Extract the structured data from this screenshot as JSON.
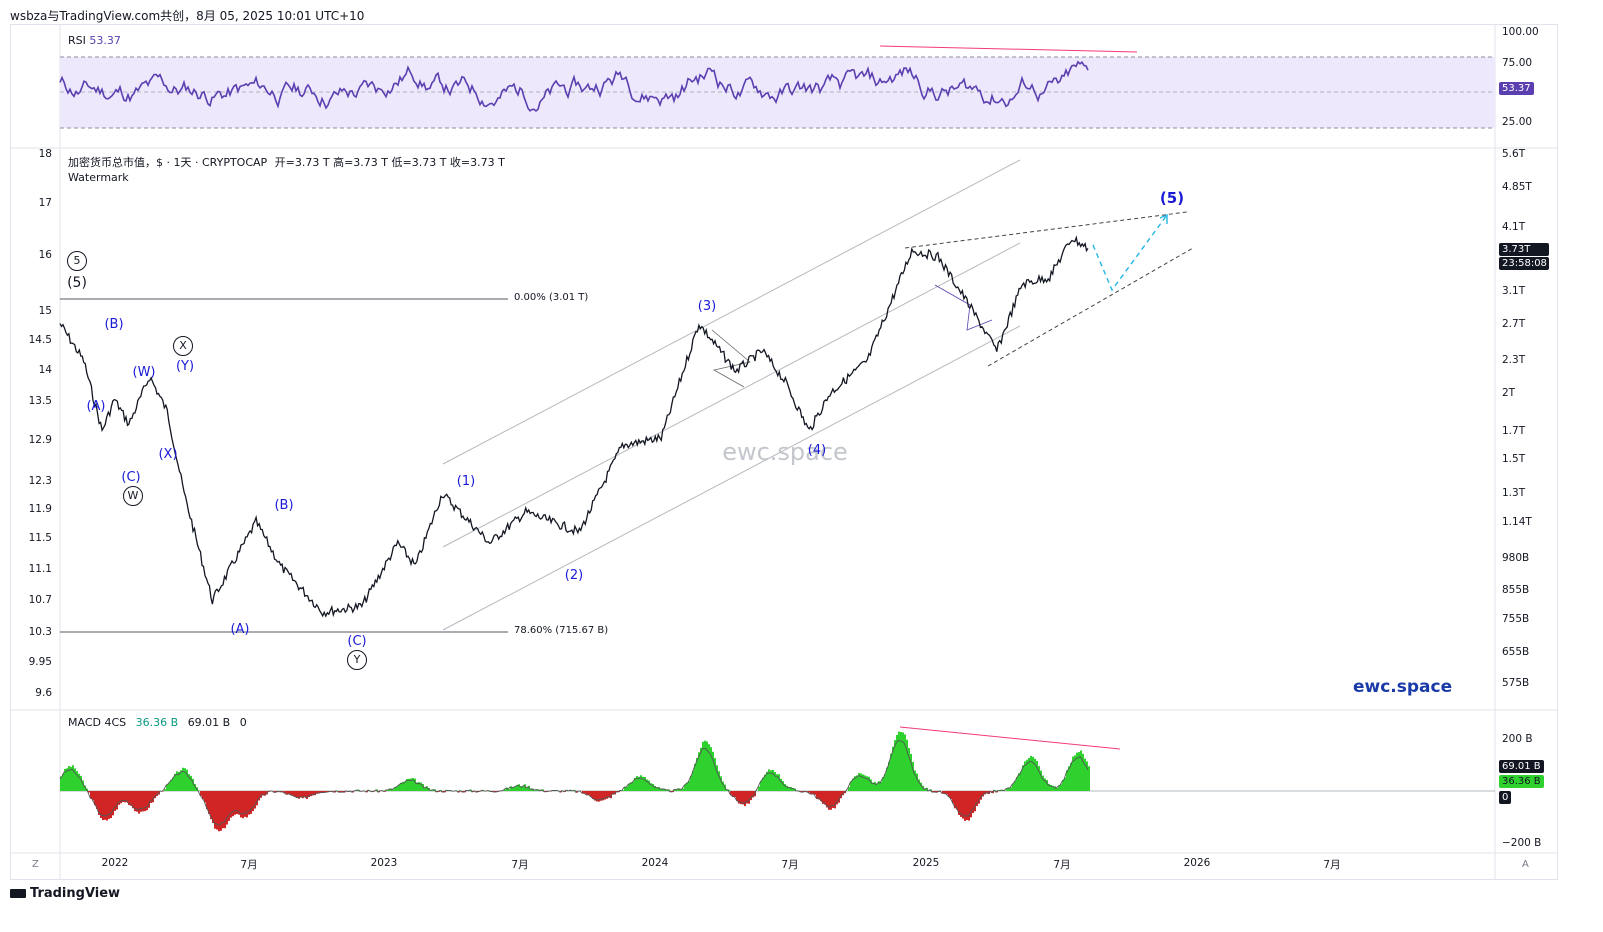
{
  "header": {
    "text": "wsbza与TradingView.com共创，8月 05, 2025 10:01 UTC+10"
  },
  "rsi": {
    "label": "RSI",
    "value": "53.37",
    "badge": "53.37",
    "axis": [
      "100.00",
      "75.00",
      "25.00"
    ],
    "upper": 70,
    "lower": 30,
    "color": "#5b3fb0",
    "band_color": "#ede8fb"
  },
  "main": {
    "title": "加密货币总市值，$ · 1天 · CRYPTOCAP",
    "ohlc": "开=3.73 T  高=3.73 T  低=3.73 T  收=3.73 T",
    "watermark_label": "Watermark",
    "watermark_center": "ewc.space",
    "watermark_corner": "ewc.space",
    "left_axis": [
      "18",
      "17",
      "16",
      "15",
      "14.5",
      "14",
      "13.5",
      "12.9",
      "12.3",
      "11.9",
      "11.5",
      "11.1",
      "10.7",
      "10.3",
      "9.95",
      "9.6"
    ],
    "right_axis": [
      "5.6T",
      "4.85T",
      "4.1T",
      "3.1T",
      "2.7T",
      "2.3T",
      "2T",
      "1.7T",
      "1.5T",
      "1.3T",
      "1.14T",
      "980B",
      "855B",
      "755B",
      "655B",
      "575B"
    ],
    "price_badge": "3.73T",
    "countdown_badge": "23:58:08",
    "fib_top": "0.00% (3.01 T)",
    "fib_bottom": "78.60% (715.67 B)",
    "wave_labels": {
      "c5": "5",
      "p5": "(5)",
      "A1": "(A)",
      "B1": "(B)",
      "W1": "(W)",
      "C1": "(C)",
      "Wc": "W",
      "X1": "(X)",
      "Xc": "X",
      "Y1": "(Y)",
      "A2": "(A)",
      "B2": "(B)",
      "C2": "(C)",
      "Yc": "Y",
      "w1": "(1)",
      "w2": "(2)",
      "w3": "(3)",
      "w4": "(4)",
      "w5": "(5)"
    }
  },
  "macd": {
    "label": "MACD 4CS",
    "v1": "36.36 B",
    "v2": "69.01 B",
    "v3": "0",
    "axis": [
      "200 B",
      "0",
      "−200 B"
    ],
    "badge1": "69.01 B",
    "badge2": "36.36 B",
    "badge3": "0"
  },
  "time_axis": {
    "labels": [
      "2022",
      "7月",
      "2023",
      "7月",
      "2024",
      "7月",
      "2025",
      "7月",
      "2026",
      "7月"
    ]
  },
  "footer": {
    "brand": "TradingView",
    "corner_left": "Z",
    "corner_right": "A"
  },
  "colors": {
    "candle": "#131722",
    "wave_blue": "#1a1ad6",
    "divergence": "#f23a7a",
    "projection": "#24b6e6",
    "macd_up": "#2fd12f",
    "macd_down": "#d12424"
  },
  "chart_data": {
    "type": "line",
    "title": "加密货币总市值，$ · 1天 · CRYPTOCAP",
    "scale": "log",
    "x_range": [
      "2021-12",
      "2025-08"
    ],
    "ylim_usd": [
      575000000000,
      5600000000000
    ],
    "series": [
      {
        "name": "",
        "x": [
          "2021-12-01",
          "2022-01-01",
          "2022-01-25",
          "2022-02-10",
          "2022-03-01",
          "2022-03-28",
          "2022-04-20",
          "2022-05-12",
          "2022-06-18",
          "2022-08-14",
          "2022-09-15",
          "2022-11-09",
          "2022-12-30",
          "2023-02-15",
          "2023-03-10",
          "2023-04-14",
          "2023-06-15",
          "2023-08-01",
          "2023-10-10",
          "2023-12-05",
          "2024-01-25",
          "2024-03-14",
          "2024-05-01",
          "2024-06-05",
          "2024-07-05",
          "2024-08-05",
          "2024-09-01",
          "2024-10-20",
          "2024-12-17",
          "2025-01-20",
          "2025-02-25",
          "2025-04-07",
          "2025-05-10",
          "2025-06-15",
          "2025-07-14",
          "2025-08-04"
        ],
        "values": [
          2.7,
          2.3,
          1.7,
          1.95,
          1.75,
          2.15,
          1.85,
          1.3,
          0.82,
          1.15,
          0.95,
          0.78,
          0.8,
          1.05,
          0.95,
          1.3,
          1.05,
          1.2,
          1.1,
          1.6,
          1.65,
          2.7,
          2.2,
          2.4,
          2.1,
          1.7,
          2.0,
          2.3,
          3.7,
          3.6,
          3.0,
          2.4,
          3.2,
          3.3,
          3.9,
          3.73
        ]
      }
    ],
    "value_unit": "T USD",
    "annotations": [
      "(A)",
      "(B)",
      "(C)",
      "(W)",
      "(X)",
      "(Y)",
      "(1)",
      "(2)",
      "(3)",
      "(4)",
      "(5)"
    ]
  }
}
